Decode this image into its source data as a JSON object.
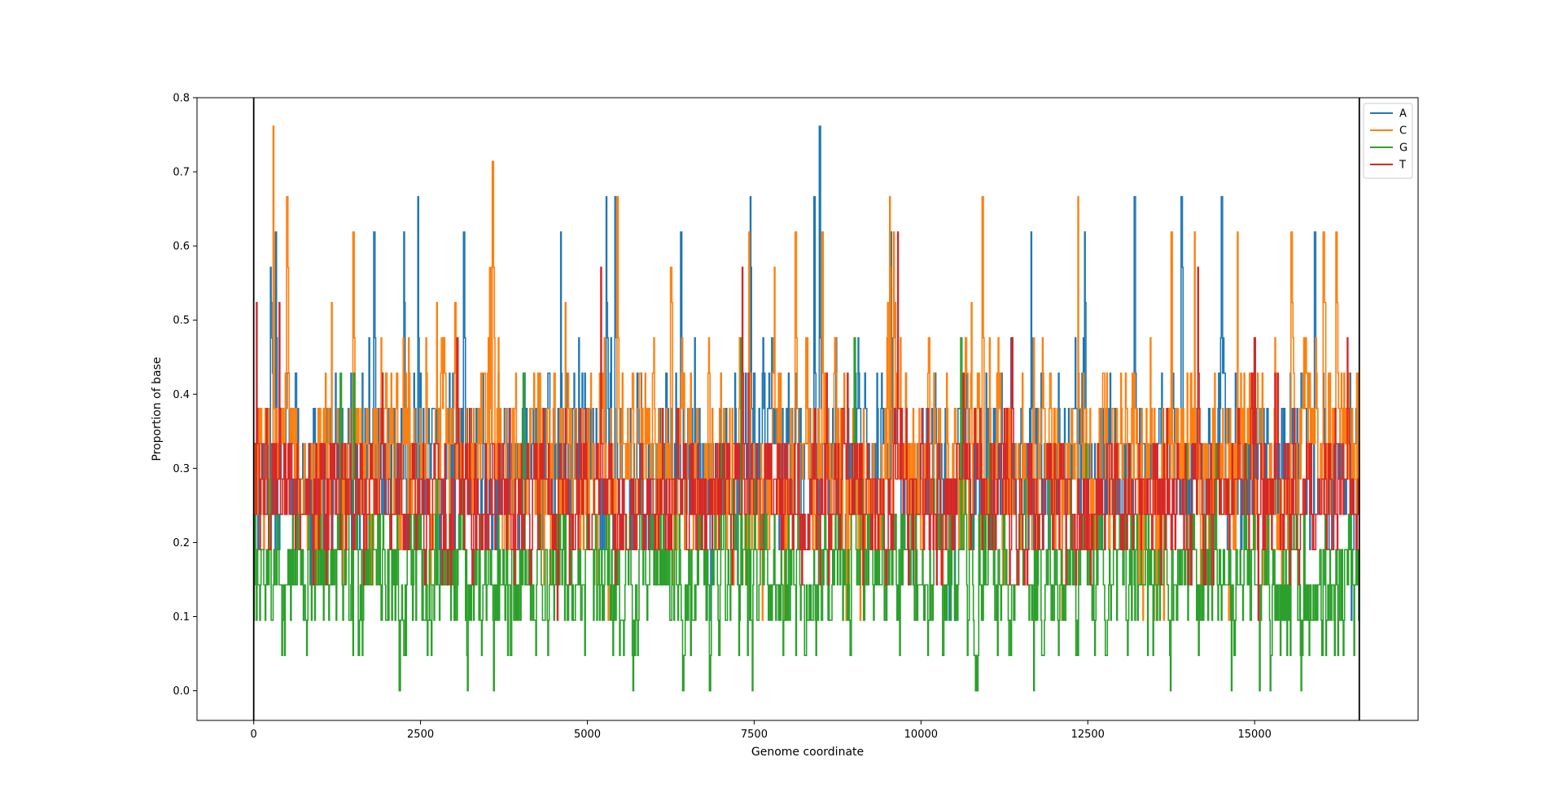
{
  "chart_data": {
    "type": "line",
    "title": "",
    "xlabel": "Genome coordinate",
    "ylabel": "Proportion of base",
    "xlim": [
      -850,
      17450
    ],
    "ylim": [
      -0.04,
      0.8
    ],
    "x_ticks": [
      0,
      2500,
      5000,
      7500,
      10000,
      12500,
      15000
    ],
    "x_tick_labels": [
      "0",
      "2500",
      "5000",
      "7500",
      "10000",
      "12500",
      "15000"
    ],
    "y_ticks": [
      0.0,
      0.1,
      0.2,
      0.3,
      0.4,
      0.5,
      0.6,
      0.7,
      0.8
    ],
    "y_tick_labels": [
      "0.0",
      "0.1",
      "0.2",
      "0.3",
      "0.4",
      "0.5",
      "0.6",
      "0.7",
      "0.8"
    ],
    "vertical_lines": [
      0,
      16569
    ],
    "grid": false,
    "legend_position": "top-right",
    "x_start": 0,
    "x_end": 16569,
    "window": 21,
    "value_step": 0.0476,
    "series": [
      {
        "name": "A",
        "color": "#1f77b4",
        "mean": 0.31,
        "spread": 0.1,
        "min": 0.0,
        "max": 0.762,
        "peaks": [
          [
            250,
            0.571
          ],
          [
            330,
            0.619
          ],
          [
            1800,
            0.619
          ],
          [
            2250,
            0.619
          ],
          [
            2460,
            0.667
          ],
          [
            3150,
            0.619
          ],
          [
            4600,
            0.619
          ],
          [
            5280,
            0.667
          ],
          [
            5420,
            0.667
          ],
          [
            6400,
            0.619
          ],
          [
            7440,
            0.667
          ],
          [
            8400,
            0.667
          ],
          [
            8480,
            0.762
          ],
          [
            9550,
            0.619
          ],
          [
            11650,
            0.619
          ],
          [
            12450,
            0.619
          ],
          [
            13200,
            0.667
          ],
          [
            13900,
            0.667
          ],
          [
            14500,
            0.667
          ],
          [
            15900,
            0.619
          ]
        ]
      },
      {
        "name": "C",
        "color": "#ff7f0e",
        "mean": 0.31,
        "spread": 0.12,
        "min": 0.0,
        "max": 0.762,
        "peaks": [
          [
            290,
            0.762
          ],
          [
            500,
            0.667
          ],
          [
            1490,
            0.619
          ],
          [
            3580,
            0.714
          ],
          [
            3540,
            0.571
          ],
          [
            5450,
            0.667
          ],
          [
            6250,
            0.571
          ],
          [
            7420,
            0.619
          ],
          [
            8120,
            0.619
          ],
          [
            8520,
            0.619
          ],
          [
            9530,
            0.667
          ],
          [
            9590,
            0.619
          ],
          [
            10920,
            0.667
          ],
          [
            12350,
            0.667
          ],
          [
            13750,
            0.619
          ],
          [
            14100,
            0.619
          ],
          [
            14740,
            0.619
          ],
          [
            15550,
            0.619
          ],
          [
            16030,
            0.619
          ],
          [
            16220,
            0.619
          ]
        ]
      },
      {
        "name": "G",
        "color": "#2ca02c",
        "mean": 0.16,
        "spread": 0.09,
        "min": 0.0,
        "max": 0.476,
        "peaks": [
          [
            1300,
            0.429
          ],
          [
            1500,
            0.429
          ],
          [
            4040,
            0.429
          ],
          [
            7300,
            0.476
          ],
          [
            9000,
            0.476
          ],
          [
            10600,
            0.476
          ]
        ]
      },
      {
        "name": "T",
        "color": "#d62728",
        "mean": 0.26,
        "spread": 0.08,
        "min": 0.0,
        "max": 0.619,
        "peaks": [
          [
            40,
            0.524
          ],
          [
            380,
            0.524
          ],
          [
            3050,
            0.476
          ],
          [
            5200,
            0.571
          ],
          [
            7320,
            0.571
          ],
          [
            9650,
            0.619
          ],
          [
            11360,
            0.476
          ],
          [
            14150,
            0.571
          ],
          [
            15000,
            0.476
          ],
          [
            16390,
            0.476
          ]
        ]
      }
    ]
  }
}
